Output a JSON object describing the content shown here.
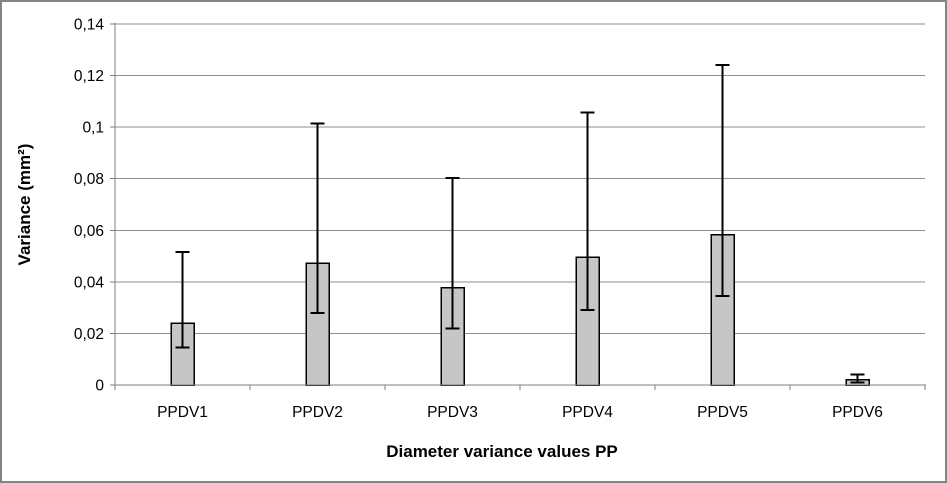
{
  "chart_data": {
    "type": "bar",
    "title": "",
    "categories": [
      "PPDV1",
      "PPDV2",
      "PPDV3",
      "PPDV4",
      "PPDV5",
      "PPDV6"
    ],
    "series": [
      {
        "name": "Diameter variance",
        "values": [
          0.024,
          0.0473,
          0.0377,
          0.0495,
          0.0582,
          0.002
        ],
        "error_low": [
          0.0145,
          0.028,
          0.022,
          0.029,
          0.0345,
          0.001
        ],
        "error_high": [
          0.0515,
          0.1015,
          0.0802,
          0.1057,
          0.1241,
          0.004
        ]
      }
    ],
    "xlabel": "Diameter variance values PP",
    "ylabel": "Variance (mm²)",
    "ylim": [
      0,
      0.14
    ],
    "ytick_interval": 0.02,
    "ytick_labels": [
      "0",
      "0,02",
      "0,04",
      "0,06",
      "0,08",
      "0,1",
      "0,12",
      "0,14"
    ],
    "grid": true,
    "legend_position": "none",
    "colors": {
      "bar_fill": "#c6c6c6",
      "bar_border": "#000000",
      "error_bar": "#000000",
      "gridline": "#8f8f8f",
      "axis_line": "#7f7f7f",
      "frame_border": "#848484",
      "text": "#000000",
      "background": "#ffffff"
    }
  }
}
